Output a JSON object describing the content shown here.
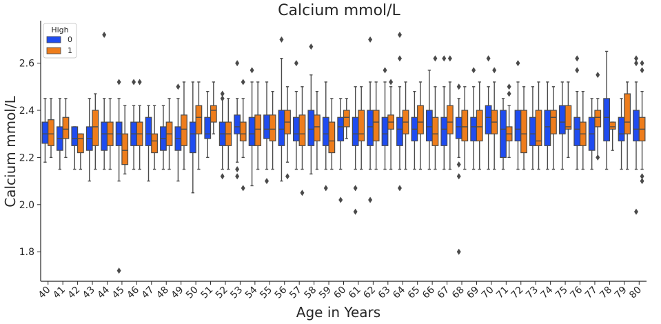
{
  "chart_data": {
    "type": "box",
    "title": "Calcium mmol/L",
    "xlabel": "Age in Years",
    "ylabel": "Calcium mmol/L",
    "ylim": [
      1.675,
      2.78
    ],
    "yticks": [
      1.8,
      2.0,
      2.2,
      2.4,
      2.6
    ],
    "legend": {
      "title": "High",
      "placement": "top-left"
    },
    "categories": [
      "40",
      "41",
      "42",
      "43",
      "44",
      "45",
      "46",
      "47",
      "48",
      "49",
      "50",
      "51",
      "52",
      "53",
      "54",
      "55",
      "56",
      "57",
      "58",
      "59",
      "60",
      "61",
      "62",
      "63",
      "64",
      "65",
      "66",
      "67",
      "68",
      "69",
      "70",
      "71",
      "72",
      "73",
      "74",
      "75",
      "76",
      "77",
      "78",
      "79",
      "80"
    ],
    "series": [
      {
        "name": "0",
        "color": "#1f4cf0",
        "boxes": [
          {
            "lw": 2.18,
            "q1": 2.26,
            "med": 2.3,
            "q3": 2.35,
            "uw": 2.45,
            "out": []
          },
          {
            "lw": 2.15,
            "q1": 2.23,
            "med": 2.28,
            "q3": 2.33,
            "uw": 2.45,
            "out": []
          },
          {
            "lw": 2.15,
            "q1": 2.25,
            "med": 2.28,
            "q3": 2.33,
            "uw": 2.33,
            "out": []
          },
          {
            "lw": 2.1,
            "q1": 2.23,
            "med": 2.28,
            "q3": 2.33,
            "uw": 2.45,
            "out": []
          },
          {
            "lw": 2.15,
            "q1": 2.23,
            "med": 2.3,
            "q3": 2.35,
            "uw": 2.45,
            "out": [
              2.72
            ]
          },
          {
            "lw": 2.1,
            "q1": 2.25,
            "med": 2.3,
            "q3": 2.35,
            "uw": 2.45,
            "out": [
              2.52,
              1.72
            ]
          },
          {
            "lw": 2.15,
            "q1": 2.25,
            "med": 2.3,
            "q3": 2.35,
            "uw": 2.42,
            "out": [
              2.52
            ]
          },
          {
            "lw": 2.1,
            "q1": 2.25,
            "med": 2.3,
            "q3": 2.37,
            "uw": 2.42,
            "out": []
          },
          {
            "lw": 2.15,
            "q1": 2.23,
            "med": 2.28,
            "q3": 2.33,
            "uw": 2.42,
            "out": []
          },
          {
            "lw": 2.1,
            "q1": 2.23,
            "med": 2.28,
            "q3": 2.33,
            "uw": 2.45,
            "out": [
              2.5
            ]
          },
          {
            "lw": 2.05,
            "q1": 2.22,
            "med": 2.3,
            "q3": 2.35,
            "uw": 2.52,
            "out": []
          },
          {
            "lw": 2.2,
            "q1": 2.28,
            "med": 2.3,
            "q3": 2.37,
            "uw": 2.48,
            "out": []
          },
          {
            "lw": 2.15,
            "q1": 2.25,
            "med": 2.3,
            "q3": 2.35,
            "uw": 2.45,
            "out": [
              2.47,
              2.45,
              2.12
            ]
          },
          {
            "lw": 2.18,
            "q1": 2.3,
            "med": 2.33,
            "q3": 2.38,
            "uw": 2.45,
            "out": [
              2.6,
              2.15,
              2.12
            ]
          },
          {
            "lw": 2.08,
            "q1": 2.25,
            "med": 2.3,
            "q3": 2.37,
            "uw": 2.52,
            "out": [
              2.57
            ]
          },
          {
            "lw": 2.15,
            "q1": 2.28,
            "med": 2.32,
            "q3": 2.38,
            "uw": 2.52,
            "out": [
              2.1
            ]
          },
          {
            "lw": 2.1,
            "q1": 2.25,
            "med": 2.32,
            "q3": 2.4,
            "uw": 2.62,
            "out": [
              2.7
            ]
          },
          {
            "lw": 2.15,
            "q1": 2.27,
            "med": 2.3,
            "q3": 2.37,
            "uw": 2.48,
            "out": [
              2.6
            ]
          },
          {
            "lw": 2.13,
            "q1": 2.25,
            "med": 2.32,
            "q3": 2.4,
            "uw": 2.55,
            "out": [
              2.67
            ]
          },
          {
            "lw": 2.15,
            "q1": 2.25,
            "med": 2.3,
            "q3": 2.37,
            "uw": 2.52,
            "out": [
              2.07
            ]
          },
          {
            "lw": 2.15,
            "q1": 2.27,
            "med": 2.33,
            "q3": 2.37,
            "uw": 2.45,
            "out": [
              2.02
            ]
          },
          {
            "lw": 2.15,
            "q1": 2.25,
            "med": 2.3,
            "q3": 2.37,
            "uw": 2.5,
            "out": [
              2.07,
              1.97
            ]
          },
          {
            "lw": 2.15,
            "q1": 2.25,
            "med": 2.33,
            "q3": 2.4,
            "uw": 2.52,
            "out": [
              2.7,
              2.02
            ]
          },
          {
            "lw": 2.15,
            "q1": 2.25,
            "med": 2.3,
            "q3": 2.37,
            "uw": 2.52,
            "out": [
              2.57
            ]
          },
          {
            "lw": 2.15,
            "q1": 2.25,
            "med": 2.32,
            "q3": 2.37,
            "uw": 2.5,
            "out": [
              2.72,
              2.62,
              2.07
            ]
          },
          {
            "lw": 2.15,
            "q1": 2.27,
            "med": 2.32,
            "q3": 2.37,
            "uw": 2.48,
            "out": []
          },
          {
            "lw": 2.15,
            "q1": 2.27,
            "med": 2.33,
            "q3": 2.4,
            "uw": 2.57,
            "out": []
          },
          {
            "lw": 2.15,
            "q1": 2.25,
            "med": 2.32,
            "q3": 2.37,
            "uw": 2.5,
            "out": [
              2.62
            ]
          },
          {
            "lw": 2.2,
            "q1": 2.28,
            "med": 2.33,
            "q3": 2.37,
            "uw": 2.45,
            "out": [
              2.5,
              2.17,
              2.12,
              1.8
            ]
          },
          {
            "lw": 2.15,
            "q1": 2.27,
            "med": 2.33,
            "q3": 2.37,
            "uw": 2.5,
            "out": [
              2.57
            ]
          },
          {
            "lw": 2.15,
            "q1": 2.3,
            "med": 2.37,
            "q3": 2.42,
            "uw": 2.5,
            "out": [
              2.62
            ]
          },
          {
            "lw": 2.15,
            "q1": 2.2,
            "med": 2.32,
            "q3": 2.4,
            "uw": 2.45,
            "out": []
          },
          {
            "lw": 2.15,
            "q1": 2.27,
            "med": 2.32,
            "q3": 2.4,
            "uw": 2.52,
            "out": [
              2.6
            ]
          },
          {
            "lw": 2.15,
            "q1": 2.25,
            "med": 2.3,
            "q3": 2.37,
            "uw": 2.5,
            "out": []
          },
          {
            "lw": 2.15,
            "q1": 2.25,
            "med": 2.33,
            "q3": 2.4,
            "uw": 2.52,
            "out": []
          },
          {
            "lw": 2.15,
            "q1": 2.3,
            "med": 2.35,
            "q3": 2.42,
            "uw": 2.52,
            "out": []
          },
          {
            "lw": 2.15,
            "q1": 2.25,
            "med": 2.32,
            "q3": 2.37,
            "uw": 2.48,
            "out": [
              2.62,
              2.57
            ]
          },
          {
            "lw": 2.15,
            "q1": 2.23,
            "med": 2.3,
            "q3": 2.37,
            "uw": 2.45,
            "out": []
          },
          {
            "lw": 2.15,
            "q1": 2.27,
            "med": 2.37,
            "q3": 2.45,
            "uw": 2.65,
            "out": []
          },
          {
            "lw": 2.15,
            "q1": 2.27,
            "med": 2.3,
            "q3": 2.37,
            "uw": 2.45,
            "out": []
          },
          {
            "lw": 2.15,
            "q1": 2.27,
            "med": 2.32,
            "q3": 2.4,
            "uw": 2.52,
            "out": [
              2.62,
              2.6,
              1.97
            ]
          }
        ]
      },
      {
        "name": "1",
        "color": "#ee7d1c",
        "boxes": [
          {
            "lw": 2.2,
            "q1": 2.25,
            "med": 2.3,
            "q3": 2.36,
            "uw": 2.45,
            "out": []
          },
          {
            "lw": 2.2,
            "q1": 2.28,
            "med": 2.32,
            "q3": 2.37,
            "uw": 2.45,
            "out": []
          },
          {
            "lw": 2.15,
            "q1": 2.22,
            "med": 2.28,
            "q3": 2.3,
            "uw": 2.3,
            "out": []
          },
          {
            "lw": 2.15,
            "q1": 2.25,
            "med": 2.33,
            "q3": 2.4,
            "uw": 2.47,
            "out": []
          },
          {
            "lw": 2.15,
            "q1": 2.25,
            "med": 2.3,
            "q3": 2.35,
            "uw": 2.45,
            "out": []
          },
          {
            "lw": 2.13,
            "q1": 2.17,
            "med": 2.23,
            "q3": 2.3,
            "uw": 2.42,
            "out": []
          },
          {
            "lw": 2.15,
            "q1": 2.25,
            "med": 2.3,
            "q3": 2.35,
            "uw": 2.42,
            "out": [
              2.52
            ]
          },
          {
            "lw": 2.15,
            "q1": 2.22,
            "med": 2.27,
            "q3": 2.3,
            "uw": 2.42,
            "out": []
          },
          {
            "lw": 2.15,
            "q1": 2.25,
            "med": 2.3,
            "q3": 2.35,
            "uw": 2.45,
            "out": []
          },
          {
            "lw": 2.15,
            "q1": 2.25,
            "med": 2.32,
            "q3": 2.38,
            "uw": 2.52,
            "out": []
          },
          {
            "lw": 2.15,
            "q1": 2.3,
            "med": 2.37,
            "q3": 2.42,
            "uw": 2.52,
            "out": []
          },
          {
            "lw": 2.3,
            "q1": 2.35,
            "med": 2.4,
            "q3": 2.42,
            "uw": 2.52,
            "out": []
          },
          {
            "lw": 2.15,
            "q1": 2.25,
            "med": 2.3,
            "q3": 2.35,
            "uw": 2.45,
            "out": []
          },
          {
            "lw": 2.2,
            "q1": 2.27,
            "med": 2.3,
            "q3": 2.35,
            "uw": 2.45,
            "out": [
              2.52,
              2.07
            ]
          },
          {
            "lw": 2.15,
            "q1": 2.25,
            "med": 2.32,
            "q3": 2.38,
            "uw": 2.52,
            "out": []
          },
          {
            "lw": 2.15,
            "q1": 2.27,
            "med": 2.32,
            "q3": 2.38,
            "uw": 2.48,
            "out": []
          },
          {
            "lw": 2.18,
            "q1": 2.3,
            "med": 2.35,
            "q3": 2.4,
            "uw": 2.5,
            "out": [
              2.12
            ]
          },
          {
            "lw": 2.15,
            "q1": 2.25,
            "med": 2.3,
            "q3": 2.38,
            "uw": 2.5,
            "out": [
              2.05
            ]
          },
          {
            "lw": 2.15,
            "q1": 2.27,
            "med": 2.33,
            "q3": 2.38,
            "uw": 2.48,
            "out": []
          },
          {
            "lw": 2.15,
            "q1": 2.22,
            "med": 2.27,
            "q3": 2.35,
            "uw": 2.45,
            "out": []
          },
          {
            "lw": 2.28,
            "q1": 2.33,
            "med": 2.37,
            "q3": 2.4,
            "uw": 2.45,
            "out": []
          },
          {
            "lw": 2.15,
            "q1": 2.27,
            "med": 2.3,
            "q3": 2.4,
            "uw": 2.5,
            "out": []
          },
          {
            "lw": 2.15,
            "q1": 2.27,
            "med": 2.35,
            "q3": 2.4,
            "uw": 2.52,
            "out": []
          },
          {
            "lw": 2.15,
            "q1": 2.32,
            "med": 2.35,
            "q3": 2.38,
            "uw": 2.5,
            "out": [
              2.52
            ]
          },
          {
            "lw": 2.15,
            "q1": 2.3,
            "med": 2.35,
            "q3": 2.4,
            "uw": 2.52,
            "out": []
          },
          {
            "lw": 2.15,
            "q1": 2.3,
            "med": 2.35,
            "q3": 2.42,
            "uw": 2.52,
            "out": []
          },
          {
            "lw": 2.15,
            "q1": 2.25,
            "med": 2.3,
            "q3": 2.37,
            "uw": 2.5,
            "out": [
              2.62
            ]
          },
          {
            "lw": 2.15,
            "q1": 2.3,
            "med": 2.35,
            "q3": 2.42,
            "uw": 2.52,
            "out": [
              2.62
            ]
          },
          {
            "lw": 2.15,
            "q1": 2.27,
            "med": 2.33,
            "q3": 2.4,
            "uw": 2.5,
            "out": []
          },
          {
            "lw": 2.15,
            "q1": 2.27,
            "med": 2.33,
            "q3": 2.4,
            "uw": 2.52,
            "out": []
          },
          {
            "lw": 2.15,
            "q1": 2.3,
            "med": 2.35,
            "q3": 2.4,
            "uw": 2.52,
            "out": [
              2.57
            ]
          },
          {
            "lw": 2.2,
            "q1": 2.27,
            "med": 2.3,
            "q3": 2.33,
            "uw": 2.42,
            "out": [
              2.5,
              2.47
            ]
          },
          {
            "lw": 2.15,
            "q1": 2.22,
            "med": 2.3,
            "q3": 2.4,
            "uw": 2.5,
            "out": []
          },
          {
            "lw": 2.15,
            "q1": 2.25,
            "med": 2.27,
            "q3": 2.4,
            "uw": 2.52,
            "out": []
          },
          {
            "lw": 2.15,
            "q1": 2.3,
            "med": 2.37,
            "q3": 2.4,
            "uw": 2.5,
            "out": []
          },
          {
            "lw": 2.2,
            "q1": 2.32,
            "med": 2.33,
            "q3": 2.42,
            "uw": 2.52,
            "out": []
          },
          {
            "lw": 2.15,
            "q1": 2.25,
            "med": 2.3,
            "q3": 2.35,
            "uw": 2.48,
            "out": []
          },
          {
            "lw": 2.2,
            "q1": 2.33,
            "med": 2.37,
            "q3": 2.4,
            "uw": 2.45,
            "out": [
              2.55,
              2.2
            ]
          },
          {
            "lw": 2.23,
            "q1": 2.32,
            "med": 2.33,
            "q3": 2.35,
            "uw": 2.35,
            "out": []
          },
          {
            "lw": 2.15,
            "q1": 2.3,
            "med": 2.35,
            "q3": 2.47,
            "uw": 2.52,
            "out": []
          },
          {
            "lw": 2.15,
            "q1": 2.27,
            "med": 2.32,
            "q3": 2.37,
            "uw": 2.48,
            "out": [
              2.6,
              2.57,
              2.12,
              2.1
            ]
          }
        ]
      }
    ]
  }
}
